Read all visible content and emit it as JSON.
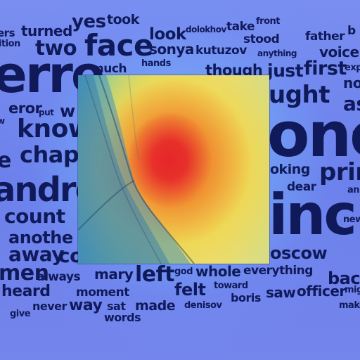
{
  "words": [
    "ers",
    "ition",
    "turned",
    "yes",
    "took",
    "two",
    "face",
    "look",
    "sonya",
    "dolokhov",
    "kutuzov",
    "take",
    "stood",
    "front",
    "anything",
    "father",
    "voice",
    "b",
    "erre",
    "much",
    "hands",
    "though",
    "just",
    "first",
    "exp",
    "no",
    "eror",
    "put",
    "w",
    "w",
    "know",
    "chap",
    "e",
    "andrew",
    "count",
    "anothe",
    "away",
    "co",
    "men",
    "always",
    "heard",
    "never",
    "way",
    "give",
    "mary",
    "left",
    "god",
    "whole",
    "everything",
    "back",
    "moment",
    "sat",
    "made",
    "denisov",
    "words",
    "felt",
    "toward",
    "boris",
    "saw",
    "officer",
    "mig",
    "make",
    "ught",
    "as",
    "le",
    "one",
    "oking",
    "prin",
    "dear",
    "an",
    "inc",
    "new",
    "oscow"
  ],
  "colors": {
    "background": "#6b7fe0",
    "text": "#101a5a"
  }
}
